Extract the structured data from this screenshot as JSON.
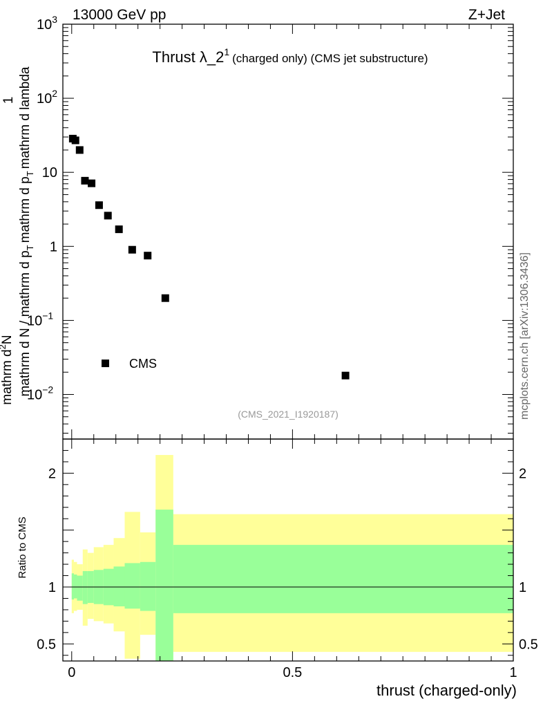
{
  "header": {
    "left": "13000 GeV pp",
    "right": "Z+Jet"
  },
  "watermark": "mcplots.cern.ch [arXiv:1306.3436]",
  "chart_data": [
    {
      "type": "scatter",
      "title": "Thrust λ_2",
      "title_sup": "1",
      "title_suffix": "(charged only) (CMS jet substructure)",
      "analysis": "(CMS_2021_I1920187)",
      "ylabel_parts": {
        "prefix": "1",
        "denominator": "mathrm d N / mathrm d p",
        "denominator_sub": "T",
        "numerator": "mathrm d",
        "numerator_sup": "2",
        "numerator_tail": "N",
        "den_mid": "mathrm d p",
        "den_mid_sub": "T",
        "den_tail": "mathrm d lambda"
      },
      "yscale": "log",
      "ylim": [
        0.0025,
        1000
      ],
      "xlim": [
        -0.02,
        1.0
      ],
      "y_ticks": [
        {
          "value": 0.01,
          "base": "10",
          "exp": "−2"
        },
        {
          "value": 0.1,
          "base": "10",
          "exp": "−1"
        },
        {
          "value": 1,
          "base": "1",
          "exp": ""
        },
        {
          "value": 10,
          "base": "10",
          "exp": ""
        },
        {
          "value": 100,
          "base": "10",
          "exp": "2"
        },
        {
          "value": 1000,
          "base": "10",
          "exp": "3"
        }
      ],
      "legend": {
        "entries": [
          "CMS"
        ],
        "placement": "lower-left"
      },
      "series": [
        {
          "name": "CMS",
          "x": [
            0.0025,
            0.0085,
            0.018,
            0.03,
            0.045,
            0.062,
            0.082,
            0.107,
            0.137,
            0.172,
            0.212,
            0.62
          ],
          "y": [
            28.5,
            27,
            20,
            7.7,
            7.1,
            3.6,
            2.6,
            1.7,
            0.9,
            0.75,
            0.2,
            0.018
          ]
        }
      ]
    },
    {
      "type": "area",
      "ylabel": "Ratio to CMS",
      "xlabel": "thrust (charged-only)",
      "xlim": [
        -0.02,
        1.0
      ],
      "ylim": [
        0.35,
        2.3
      ],
      "x_ticks": [
        {
          "value": 0,
          "label": "0"
        },
        {
          "value": 0.5,
          "label": "0.5"
        },
        {
          "value": 1,
          "label": "1"
        }
      ],
      "y_ticks": [
        {
          "value": 0.5,
          "label": "0.5"
        },
        {
          "value": 1,
          "label": "1"
        },
        {
          "value": 2,
          "label": "2"
        }
      ],
      "reference_line": 1,
      "colors": {
        "inner": "#99ff99",
        "outer": "#ffff99"
      },
      "bins": [
        {
          "x0": 0.0,
          "x1": 0.005,
          "in_lo": 0.89,
          "in_hi": 1.12,
          "out_lo": 0.77,
          "out_hi": 1.24
        },
        {
          "x0": 0.005,
          "x1": 0.012,
          "in_lo": 0.9,
          "in_hi": 1.11,
          "out_lo": 0.79,
          "out_hi": 1.22
        },
        {
          "x0": 0.012,
          "x1": 0.025,
          "in_lo": 0.88,
          "in_hi": 1.1,
          "out_lo": 0.8,
          "out_hi": 1.2
        },
        {
          "x0": 0.025,
          "x1": 0.036,
          "in_lo": 0.85,
          "in_hi": 1.14,
          "out_lo": 0.66,
          "out_hi": 1.33
        },
        {
          "x0": 0.036,
          "x1": 0.05,
          "in_lo": 0.86,
          "in_hi": 1.14,
          "out_lo": 0.72,
          "out_hi": 1.3
        },
        {
          "x0": 0.05,
          "x1": 0.072,
          "in_lo": 0.85,
          "in_hi": 1.15,
          "out_lo": 0.7,
          "out_hi": 1.35
        },
        {
          "x0": 0.072,
          "x1": 0.095,
          "in_lo": 0.84,
          "in_hi": 1.16,
          "out_lo": 0.68,
          "out_hi": 1.37
        },
        {
          "x0": 0.095,
          "x1": 0.12,
          "in_lo": 0.83,
          "in_hi": 1.18,
          "out_lo": 0.61,
          "out_hi": 1.43
        },
        {
          "x0": 0.12,
          "x1": 0.155,
          "in_lo": 0.81,
          "in_hi": 1.21,
          "out_lo": 0.37,
          "out_hi": 1.66
        },
        {
          "x0": 0.155,
          "x1": 0.19,
          "in_lo": 0.79,
          "in_hi": 1.22,
          "out_lo": 0.58,
          "out_hi": 1.48
        },
        {
          "x0": 0.19,
          "x1": 0.23,
          "in_lo": 0.35,
          "in_hi": 1.68,
          "out_lo": 0.35,
          "out_hi": 2.16
        },
        {
          "x0": 0.23,
          "x1": 1.0,
          "in_lo": 0.77,
          "in_hi": 1.37,
          "out_lo": 0.43,
          "out_hi": 1.64
        }
      ]
    }
  ]
}
